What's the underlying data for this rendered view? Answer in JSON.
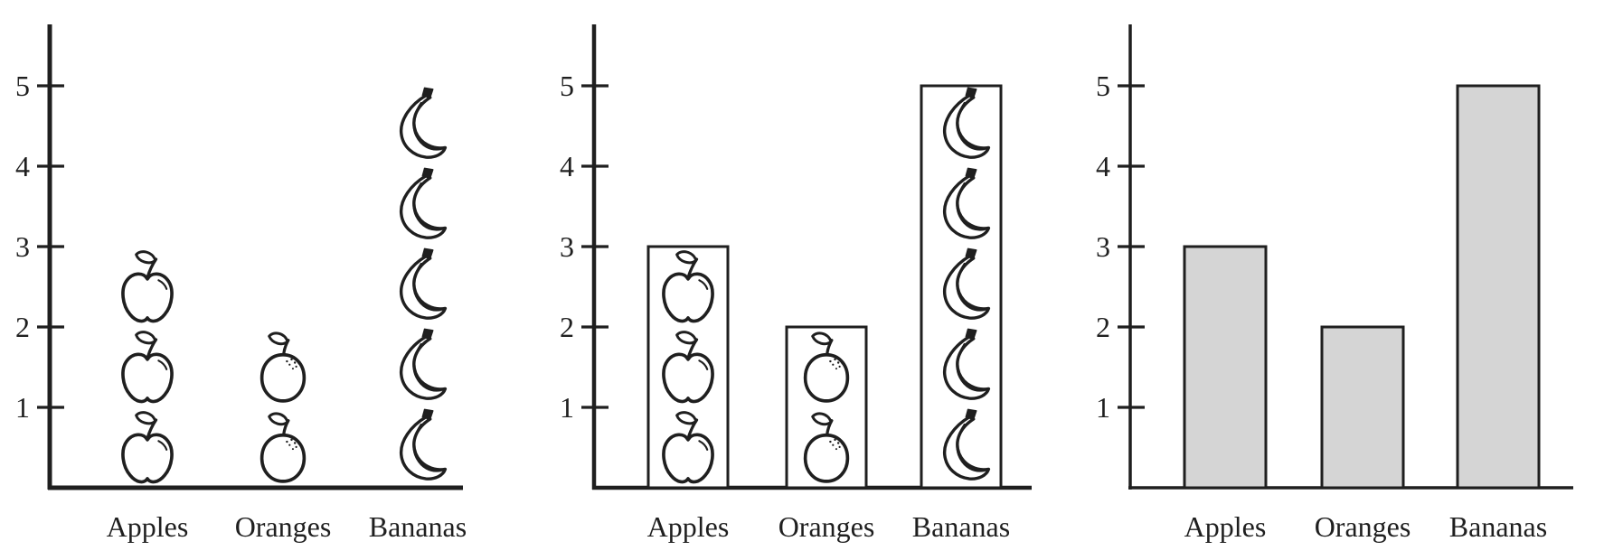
{
  "figure": {
    "description": "Three-panel figure showing the same fruit data as a pictograph, a pictograph with bar outlines, and a plain bar chart",
    "background": "#ffffff",
    "ink": "#1f1f1f"
  },
  "chart_data": [
    {
      "id": "pictograph",
      "type": "pictograph",
      "title": "",
      "categories": [
        "Apples",
        "Oranges",
        "Bananas"
      ],
      "values": [
        3,
        2,
        5
      ],
      "icons": [
        "apple-icon",
        "orange-icon",
        "banana-icon"
      ],
      "yticks": [
        1,
        2,
        3,
        4,
        5
      ],
      "ytick_labels": [
        "1",
        "2",
        "3",
        "4",
        "5"
      ],
      "ylim": [
        0,
        5.8
      ],
      "xlabel": "",
      "ylabel": "",
      "grid": false,
      "legend": "none",
      "bars": "none"
    },
    {
      "id": "pictograph-with-bar-outlines",
      "type": "pictograph-bar",
      "title": "",
      "categories": [
        "Apples",
        "Oranges",
        "Bananas"
      ],
      "values": [
        3,
        2,
        5
      ],
      "icons": [
        "apple-icon",
        "orange-icon",
        "banana-icon"
      ],
      "yticks": [
        1,
        2,
        3,
        4,
        5
      ],
      "ytick_labels": [
        "1",
        "2",
        "3",
        "4",
        "5"
      ],
      "ylim": [
        0,
        5.8
      ],
      "xlabel": "",
      "ylabel": "",
      "grid": false,
      "legend": "none",
      "bars": "outline",
      "bar_fill": "#ffffff",
      "bar_stroke": "#1f1f1f"
    },
    {
      "id": "bar-chart",
      "type": "bar",
      "title": "",
      "categories": [
        "Apples",
        "Oranges",
        "Bananas"
      ],
      "values": [
        3,
        2,
        5
      ],
      "icons": null,
      "yticks": [
        1,
        2,
        3,
        4,
        5
      ],
      "ytick_labels": [
        "1",
        "2",
        "3",
        "4",
        "5"
      ],
      "ylim": [
        0,
        5.8
      ],
      "xlabel": "",
      "ylabel": "",
      "grid": false,
      "legend": "none",
      "bars": "filled",
      "bar_fill": "#d5d5d5",
      "bar_stroke": "#1f1f1f"
    }
  ],
  "colors": {
    "ink": "#1f1f1f",
    "bar_gray": "#d5d5d5",
    "background": "#ffffff"
  }
}
